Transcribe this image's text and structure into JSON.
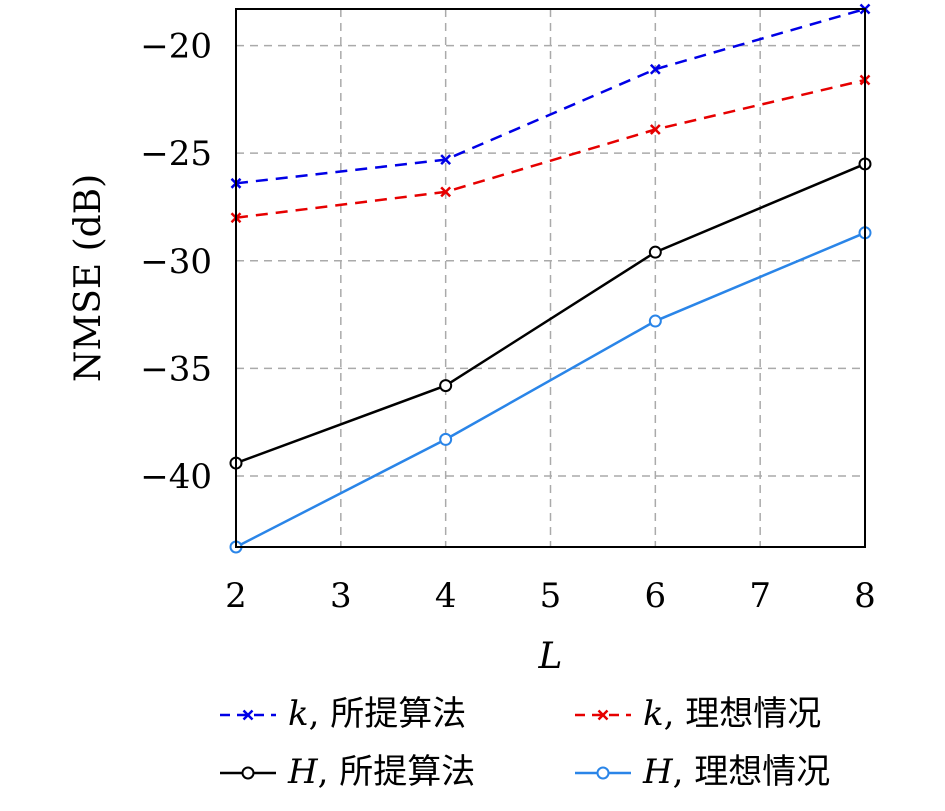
{
  "chart_data": {
    "type": "line",
    "title": "",
    "xlabel": "L",
    "ylabel": "NMSE (dB)",
    "xlim": [
      2,
      8
    ],
    "ylim": [
      -43.3,
      -18.3
    ],
    "xticks": [
      2,
      3,
      4,
      5,
      6,
      7,
      8
    ],
    "yticks": [
      -20,
      -25,
      -30,
      -35,
      -40
    ],
    "ytick_labels": [
      "−20",
      "−25",
      "−30",
      "−35",
      "−40"
    ],
    "grid": true,
    "legend_position": "below",
    "x": [
      2,
      4,
      6,
      8
    ],
    "series": [
      {
        "name_symbol": "k",
        "name_text": ", 所提算法",
        "color": "#0000e6",
        "dash": "dashed",
        "marker": "x",
        "values": [
          -26.4,
          -25.3,
          -21.1,
          -18.3
        ]
      },
      {
        "name_symbol": "k",
        "name_text": ", 理想情况",
        "color": "#e60000",
        "dash": "dashed",
        "marker": "x",
        "values": [
          -28.0,
          -26.8,
          -23.9,
          -21.6
        ]
      },
      {
        "name_symbol": "H",
        "name_text": ", 所提算法",
        "color": "#000000",
        "dash": "solid",
        "marker": "o",
        "values": [
          -39.4,
          -35.8,
          -29.6,
          -25.5
        ]
      },
      {
        "name_symbol": "H",
        "name_text": ", 理想情况",
        "color": "#2a85e8",
        "dash": "solid",
        "marker": "o",
        "values": [
          -43.3,
          -38.3,
          -32.8,
          -28.7
        ]
      }
    ]
  }
}
